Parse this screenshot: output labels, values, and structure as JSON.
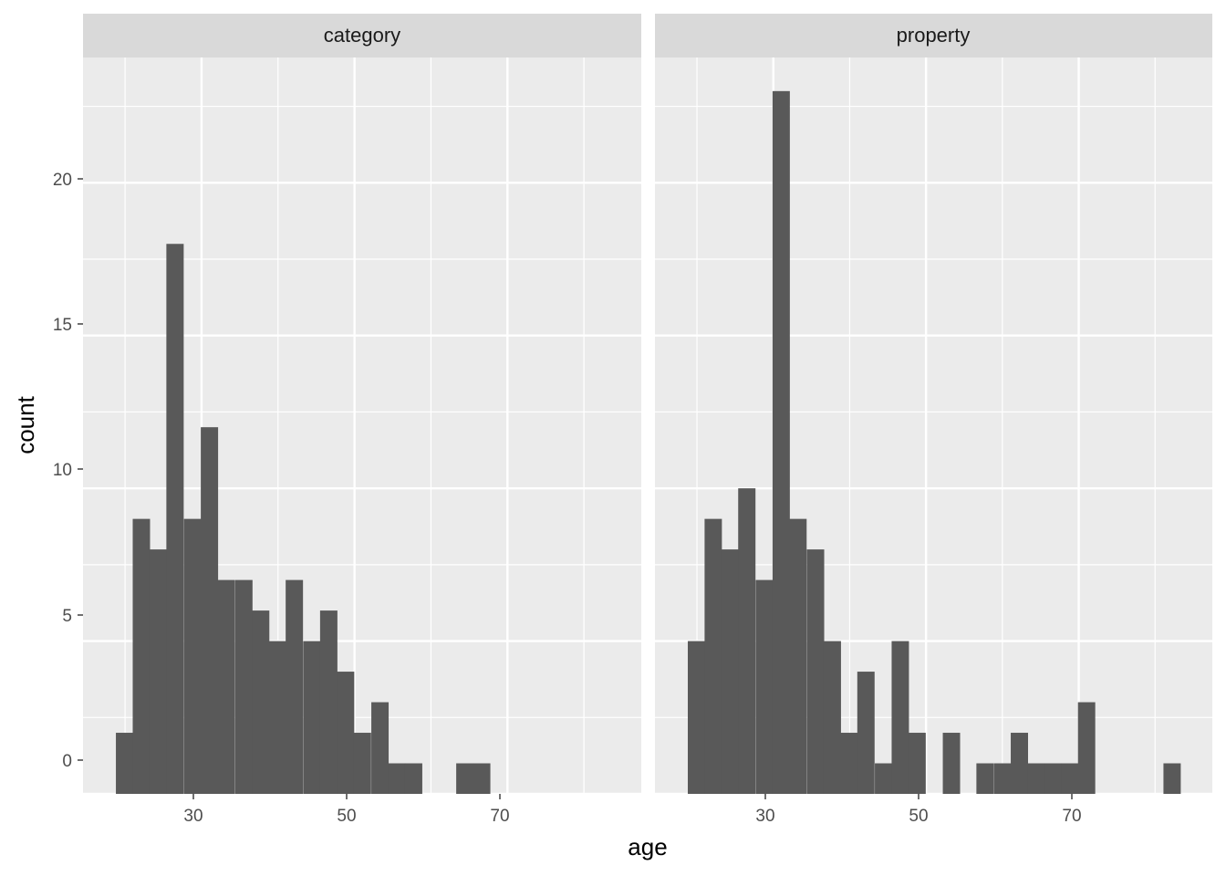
{
  "chart_data": {
    "type": "bar",
    "subtype": "faceted-histogram",
    "xlabel": "age",
    "ylabel": "count",
    "x_ticks": [
      "30",
      "50",
      "70"
    ],
    "y_ticks": [
      "0",
      "5",
      "10",
      "15",
      "20"
    ],
    "xlim": [
      14.5,
      87.5
    ],
    "ylim": [
      0,
      24.1
    ],
    "bin_width": 2.23,
    "grid": true,
    "colors": {
      "bar": "#595959",
      "panel_bg": "#ebebeb",
      "strip_bg": "#d9d9d9",
      "grid": "#ffffff"
    },
    "facets": [
      {
        "label": "category",
        "bins": [
          {
            "x": 18.8,
            "count": 2
          },
          {
            "x": 21.0,
            "count": 9
          },
          {
            "x": 23.2,
            "count": 8
          },
          {
            "x": 25.4,
            "count": 18
          },
          {
            "x": 27.7,
            "count": 9
          },
          {
            "x": 29.9,
            "count": 12
          },
          {
            "x": 32.1,
            "count": 7
          },
          {
            "x": 34.4,
            "count": 7
          },
          {
            "x": 36.6,
            "count": 6
          },
          {
            "x": 38.8,
            "count": 5
          },
          {
            "x": 41.0,
            "count": 7
          },
          {
            "x": 43.3,
            "count": 5
          },
          {
            "x": 45.5,
            "count": 6
          },
          {
            "x": 47.7,
            "count": 4
          },
          {
            "x": 49.9,
            "count": 2
          },
          {
            "x": 52.2,
            "count": 3
          },
          {
            "x": 54.4,
            "count": 1
          },
          {
            "x": 56.6,
            "count": 1
          },
          {
            "x": 58.9,
            "count": 0
          },
          {
            "x": 61.1,
            "count": 0
          },
          {
            "x": 63.3,
            "count": 1
          },
          {
            "x": 65.5,
            "count": 1
          }
        ]
      },
      {
        "label": "property",
        "bins": [
          {
            "x": 18.8,
            "count": 5
          },
          {
            "x": 21.0,
            "count": 9
          },
          {
            "x": 23.2,
            "count": 8
          },
          {
            "x": 25.4,
            "count": 10
          },
          {
            "x": 27.7,
            "count": 7
          },
          {
            "x": 29.9,
            "count": 23
          },
          {
            "x": 32.1,
            "count": 9
          },
          {
            "x": 34.4,
            "count": 8
          },
          {
            "x": 36.6,
            "count": 5
          },
          {
            "x": 38.8,
            "count": 2
          },
          {
            "x": 41.0,
            "count": 4
          },
          {
            "x": 43.3,
            "count": 1
          },
          {
            "x": 45.5,
            "count": 5
          },
          {
            "x": 47.7,
            "count": 2
          },
          {
            "x": 49.9,
            "count": 0
          },
          {
            "x": 52.2,
            "count": 2
          },
          {
            "x": 54.4,
            "count": 0
          },
          {
            "x": 56.6,
            "count": 1
          },
          {
            "x": 58.9,
            "count": 1
          },
          {
            "x": 61.1,
            "count": 2
          },
          {
            "x": 63.3,
            "count": 1
          },
          {
            "x": 65.5,
            "count": 1
          },
          {
            "x": 67.7,
            "count": 1
          },
          {
            "x": 69.9,
            "count": 3
          },
          {
            "x": 72.2,
            "count": 0
          },
          {
            "x": 74.4,
            "count": 0
          },
          {
            "x": 76.6,
            "count": 0
          },
          {
            "x": 78.9,
            "count": 0
          },
          {
            "x": 81.1,
            "count": 1
          }
        ]
      }
    ]
  }
}
